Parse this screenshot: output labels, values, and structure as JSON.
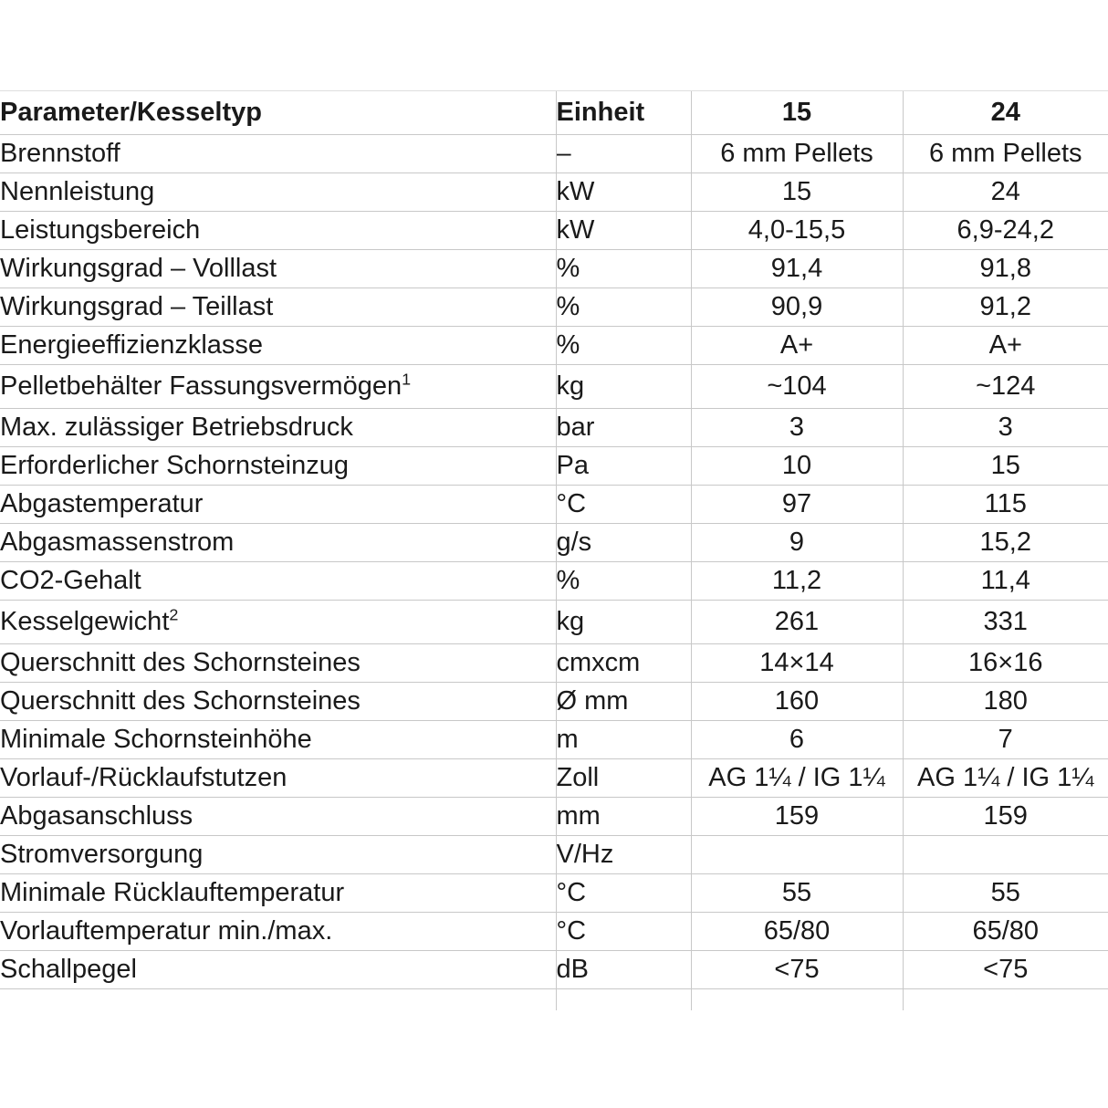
{
  "page": {
    "background": "#ffffff",
    "text_color": "#1a1a1a",
    "grid_color": "#c8c8c8"
  },
  "table": {
    "header": {
      "parameter": "Parameter/Kesseltyp",
      "unit": "Einheit",
      "model15": "15",
      "model24": "24"
    },
    "rows": [
      {
        "parameter": "Brennstoff",
        "sup": "",
        "unit": "–",
        "v15": "6 mm Pellets",
        "v24": "6 mm Pellets"
      },
      {
        "parameter": "Nennleistung",
        "sup": "",
        "unit": "kW",
        "v15": "15",
        "v24": "24"
      },
      {
        "parameter": "Leistungsbereich",
        "sup": "",
        "unit": "kW",
        "v15": "4,0-15,5",
        "v24": "6,9-24,2"
      },
      {
        "parameter": "Wirkungsgrad – Volllast",
        "sup": "",
        "unit": "%",
        "v15": "91,4",
        "v24": "91,8"
      },
      {
        "parameter": "Wirkungsgrad – Teillast",
        "sup": "",
        "unit": "%",
        "v15": "90,9",
        "v24": "91,2"
      },
      {
        "parameter": "Energieeffizienzklasse",
        "sup": "",
        "unit": "%",
        "v15": "A+",
        "v24": "A+"
      },
      {
        "parameter": "Pelletbehälter Fassungsvermögen",
        "sup": "1",
        "unit": "kg",
        "v15": "~104",
        "v24": "~124"
      },
      {
        "parameter": "Max. zulässiger Betriebsdruck",
        "sup": "",
        "unit": "bar",
        "v15": "3",
        "v24": "3"
      },
      {
        "parameter": "Erforderlicher Schornsteinzug",
        "sup": "",
        "unit": "Pa",
        "v15": "10",
        "v24": "15"
      },
      {
        "parameter": "Abgastemperatur",
        "sup": "",
        "unit": "°C",
        "v15": "97",
        "v24": "115"
      },
      {
        "parameter": "Abgasmassenstrom",
        "sup": "",
        "unit": "g/s",
        "v15": "9",
        "v24": "15,2"
      },
      {
        "parameter": "CO2-Gehalt",
        "sup": "",
        "unit": "%",
        "v15": "11,2",
        "v24": "11,4"
      },
      {
        "parameter": "Kesselgewicht",
        "sup": "2",
        "unit": "kg",
        "v15": "261",
        "v24": "331"
      },
      {
        "parameter": "Querschnitt des Schornsteines",
        "sup": "",
        "unit": "cmxcm",
        "v15": "14×14",
        "v24": "16×16"
      },
      {
        "parameter": "Querschnitt des Schornsteines",
        "sup": "",
        "unit": "Ø mm",
        "v15": "160",
        "v24": "180"
      },
      {
        "parameter": "Minimale Schornsteinhöhe",
        "sup": "",
        "unit": "m",
        "v15": "6",
        "v24": "7"
      },
      {
        "parameter": "Vorlauf-/Rücklaufstutzen",
        "sup": "",
        "unit": "Zoll",
        "v15": "AG 1¼ / IG 1¼",
        "v24": "AG 1¼ / IG 1¼"
      },
      {
        "parameter": "Abgasanschluss",
        "sup": "",
        "unit": "mm",
        "v15": "159",
        "v24": "159"
      },
      {
        "parameter": "Stromversorgung",
        "sup": "",
        "unit": "V/Hz",
        "v15": "",
        "v24": ""
      },
      {
        "parameter": "Minimale Rücklauftemperatur",
        "sup": "",
        "unit": "°C",
        "v15": "55",
        "v24": "55"
      },
      {
        "parameter": "Vorlauftemperatur min./max.",
        "sup": "",
        "unit": "°C",
        "v15": "65/80",
        "v24": "65/80"
      },
      {
        "parameter": "Schallpegel",
        "sup": "",
        "unit": "dB",
        "v15": "<75",
        "v24": "<75"
      }
    ],
    "partial_row": {
      "parameter": "",
      "unit": "",
      "v15": "",
      "v24": ""
    }
  }
}
